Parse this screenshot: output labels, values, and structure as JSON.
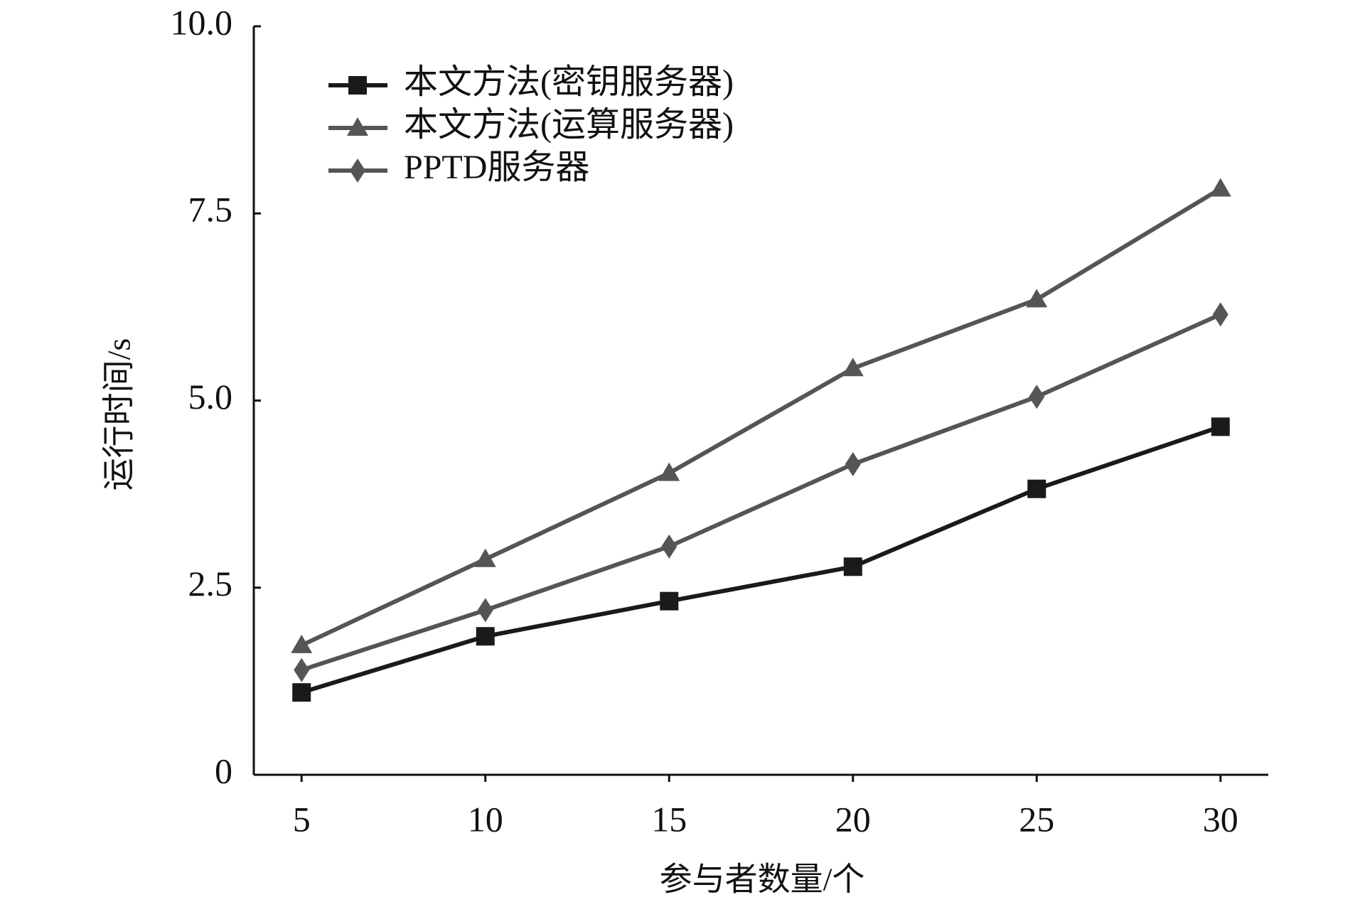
{
  "chart_data": {
    "type": "line",
    "x_label": "参与者数量/个",
    "y_label": "运行时间/s",
    "x": [
      5,
      10,
      15,
      20,
      25,
      30
    ],
    "xlim": [
      3.7,
      31.3
    ],
    "xticks": [
      5,
      10,
      15,
      20,
      25,
      30
    ],
    "ylim": [
      0,
      10
    ],
    "yticks": [
      0,
      2.5,
      {
        "value": 5,
        "label": "5.0"
      },
      7.5,
      {
        "value": 10,
        "label": "10.0"
      }
    ],
    "grid": false,
    "legend": "upper left",
    "series": [
      {
        "name": "本文方法(密钥服务器)",
        "color": "#1a1a1a",
        "marker": "square",
        "values": [
          1.1,
          1.85,
          2.32,
          2.78,
          3.82,
          4.65
        ]
      },
      {
        "name": "本文方法(运算服务器)",
        "color": "#555555",
        "marker": "triangle",
        "values": [
          1.73,
          2.88,
          4.03,
          5.43,
          6.35,
          7.83
        ]
      },
      {
        "name": "PPTD服务器",
        "color": "#555555",
        "marker": "diamond",
        "values": [
          1.4,
          2.2,
          3.05,
          4.15,
          5.05,
          6.15
        ]
      }
    ]
  }
}
